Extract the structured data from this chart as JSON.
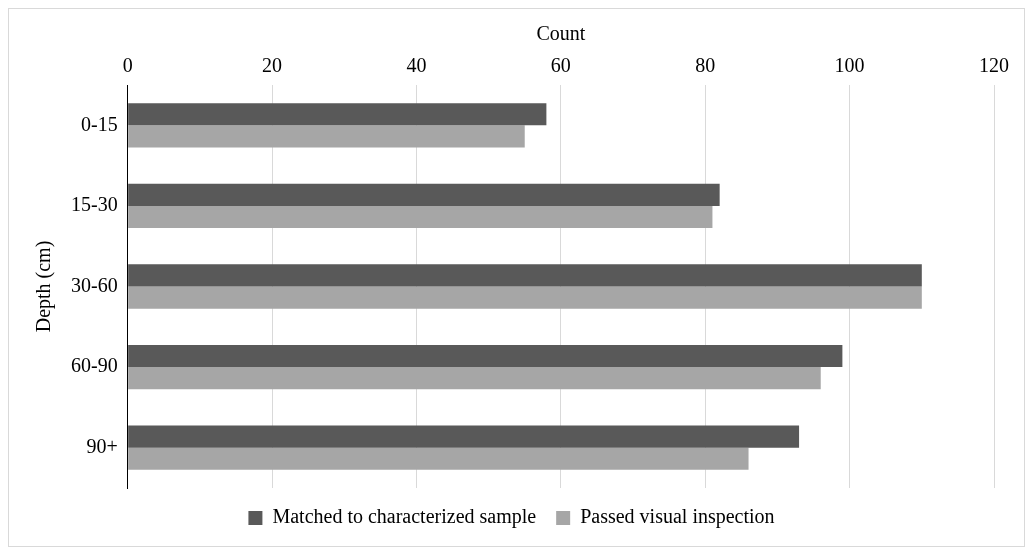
{
  "chart_data": {
    "type": "bar",
    "orientation": "horizontal",
    "xlabel": "Count",
    "ylabel": "Depth (cm)",
    "categories": [
      "0-15",
      "15-30",
      "30-60",
      "60-90",
      "90+"
    ],
    "series": [
      {
        "name": "Matched to characterized sample",
        "color": "#595959",
        "values": [
          58,
          82,
          110,
          99,
          93
        ]
      },
      {
        "name": "Passed visual inspection",
        "color": "#a6a6a6",
        "values": [
          55,
          81,
          110,
          96,
          86
        ]
      }
    ],
    "xlim": [
      0,
      120
    ],
    "xticks": [
      0,
      20,
      40,
      60,
      80,
      100,
      120
    ],
    "grid": "x",
    "legend": "bottom"
  }
}
